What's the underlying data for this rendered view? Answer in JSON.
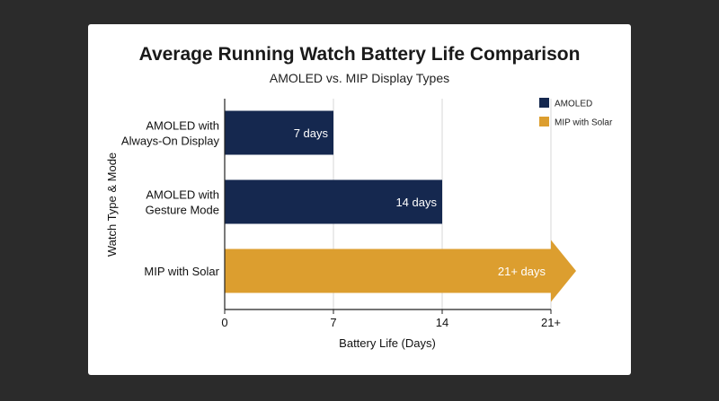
{
  "chart_data": {
    "type": "bar",
    "orientation": "horizontal",
    "title": "Average Running Watch Battery Life Comparison",
    "subtitle": "AMOLED vs. MIP Display Types",
    "xlabel": "Battery Life (Days)",
    "ylabel": "Watch Type & Mode",
    "xlim": [
      0,
      24
    ],
    "xticks": [
      0,
      7,
      14,
      21
    ],
    "xtick_labels": [
      "0",
      "7",
      "14",
      "21+"
    ],
    "grid": true,
    "legend_position": "top-right",
    "categories": [
      [
        "AMOLED with",
        "Always-On Display"
      ],
      [
        "AMOLED with",
        "Gesture Mode"
      ],
      [
        "MIP with Solar"
      ]
    ],
    "values": [
      7,
      14,
      21
    ],
    "value_labels": [
      "7 days",
      "14 days",
      "21+ days"
    ],
    "bar_series": [
      "AMOLED",
      "AMOLED",
      "MIP with Solar"
    ],
    "open_ended": [
      false,
      false,
      true
    ],
    "series": [
      {
        "name": "AMOLED",
        "color": "#15284f"
      },
      {
        "name": "MIP with Solar",
        "color": "#dc9e2f"
      }
    ]
  }
}
